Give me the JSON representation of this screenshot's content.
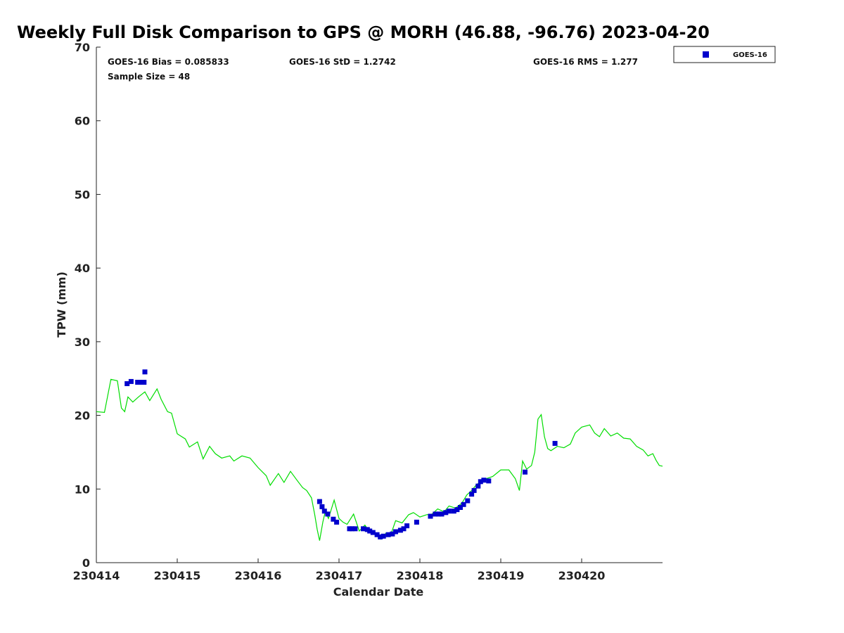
{
  "chart_data": {
    "type": "scatter",
    "title": "Weekly Full Disk Comparison to GPS @ MORH (46.88, -96.76) 2023-04-20",
    "xlabel": "Calendar Date",
    "ylabel": "TPW (mm)",
    "xlim": [
      230414,
      230421
    ],
    "ylim": [
      0,
      70
    ],
    "x_tick_labels": [
      "230414",
      "230415",
      "230416",
      "230417",
      "230418",
      "230419",
      "230420"
    ],
    "y_ticks": [
      0,
      10,
      20,
      30,
      40,
      50,
      60,
      70
    ],
    "grid": false,
    "legend_position": "top-right",
    "stats": {
      "bias": "GOES-16 Bias = 0.085833",
      "std": "GOES-16 StD = 1.2742",
      "rms": "GOES-16 RMS = 1.277",
      "sample": "Sample Size = 48"
    },
    "colors": {
      "goes16": "#0000cc",
      "gps": "#00dd00",
      "axis": "#222222"
    },
    "series": [
      {
        "name": "GOES-16",
        "marker": "square",
        "x": [
          230414.38,
          230414.43,
          230414.51,
          230414.55,
          230414.59,
          230414.6,
          230416.76,
          230416.79,
          230416.82,
          230416.86,
          230416.93,
          230416.97,
          230417.13,
          230417.16,
          230417.2,
          230417.3,
          230417.35,
          230417.38,
          230417.42,
          230417.47,
          230417.51,
          230417.55,
          230417.61,
          230417.66,
          230417.7,
          230417.76,
          230417.8,
          230417.84,
          230417.96,
          230418.13,
          230418.19,
          230418.23,
          230418.27,
          230418.32,
          230418.36,
          230418.42,
          230418.46,
          230418.5,
          230418.54,
          230418.59,
          230418.64,
          230418.67,
          230418.72,
          230418.75,
          230418.79,
          230418.85,
          230419.3,
          230419.67
        ],
        "y": [
          24.3,
          24.6,
          24.5,
          24.5,
          24.5,
          25.9,
          8.3,
          7.6,
          7.0,
          6.6,
          5.9,
          5.5,
          4.6,
          4.6,
          4.6,
          4.6,
          4.5,
          4.3,
          4.1,
          3.8,
          3.5,
          3.6,
          3.8,
          3.9,
          4.2,
          4.4,
          4.6,
          5.0,
          5.5,
          6.3,
          6.6,
          6.6,
          6.6,
          6.8,
          7.0,
          7.0,
          7.2,
          7.5,
          7.9,
          8.4,
          9.3,
          9.8,
          10.4,
          11.0,
          11.2,
          11.1,
          12.3,
          16.2
        ]
      },
      {
        "name": "GPS",
        "line": true,
        "x": [
          230414.0,
          230414.1,
          230414.18,
          230414.26,
          230414.31,
          230414.35,
          230414.39,
          230414.45,
          230414.52,
          230414.6,
          230414.66,
          230414.75,
          230414.8,
          230414.88,
          230414.93,
          230415.0,
          230415.1,
          230415.15,
          230415.25,
          230415.32,
          230415.4,
          230415.47,
          230415.55,
          230415.65,
          230415.7,
          230415.8,
          230415.9,
          230416.0,
          230416.1,
          230416.15,
          230416.25,
          230416.32,
          230416.4,
          230416.48,
          230416.55,
          230416.6,
          230416.66,
          230416.7,
          230416.73,
          230416.76,
          230416.8,
          230416.83,
          230416.87,
          230416.94,
          230417.0,
          230417.05,
          230417.1,
          230417.18,
          230417.25,
          230417.32,
          230417.4,
          230417.46,
          230417.52,
          230417.58,
          230417.64,
          230417.7,
          230417.78,
          230417.86,
          230417.92,
          230418.0,
          230418.08,
          230418.15,
          230418.22,
          230418.3,
          230418.36,
          230418.44,
          230418.52,
          230418.58,
          230418.64,
          230418.7,
          230418.76,
          230418.82,
          230418.9,
          230419.0,
          230419.1,
          230419.18,
          230419.23,
          230419.27,
          230419.32,
          230419.38,
          230419.42,
          230419.46,
          230419.5,
          230419.54,
          230419.58,
          230419.62,
          230419.7,
          230419.78,
          230419.86,
          230419.92,
          230420.0,
          230420.1,
          230420.16,
          230420.22,
          230420.28,
          230420.36,
          230420.44,
          230420.52,
          230420.6,
          230420.68,
          230420.76,
          230420.82,
          230420.88,
          230420.92,
          230420.96,
          230421.0
        ],
        "y": [
          20.5,
          20.4,
          24.9,
          24.7,
          21.0,
          20.5,
          22.5,
          21.8,
          22.5,
          23.2,
          22.0,
          23.6,
          22.2,
          20.5,
          20.3,
          17.5,
          16.8,
          15.7,
          16.4,
          14.1,
          15.8,
          14.8,
          14.2,
          14.5,
          13.8,
          14.5,
          14.2,
          12.9,
          11.8,
          10.5,
          12.1,
          10.9,
          12.4,
          11.2,
          10.2,
          9.8,
          8.8,
          6.5,
          4.5,
          3.0,
          5.5,
          6.9,
          6.0,
          8.5,
          6.0,
          5.5,
          5.2,
          6.6,
          4.3,
          5.1,
          3.9,
          4.0,
          3.2,
          4.0,
          3.8,
          5.7,
          5.4,
          6.5,
          6.8,
          6.2,
          6.5,
          6.6,
          7.3,
          6.9,
          7.7,
          7.4,
          8.1,
          9.2,
          9.8,
          10.6,
          11.0,
          11.4,
          11.7,
          12.6,
          12.6,
          11.4,
          9.8,
          13.8,
          12.7,
          13.2,
          15.0,
          19.5,
          20.1,
          17.1,
          15.5,
          15.2,
          15.8,
          15.6,
          16.1,
          17.6,
          18.4,
          18.7,
          17.6,
          17.1,
          18.2,
          17.2,
          17.6,
          16.9,
          16.8,
          15.8,
          15.3,
          14.5,
          14.8,
          13.9,
          13.2,
          13.1
        ]
      }
    ]
  }
}
